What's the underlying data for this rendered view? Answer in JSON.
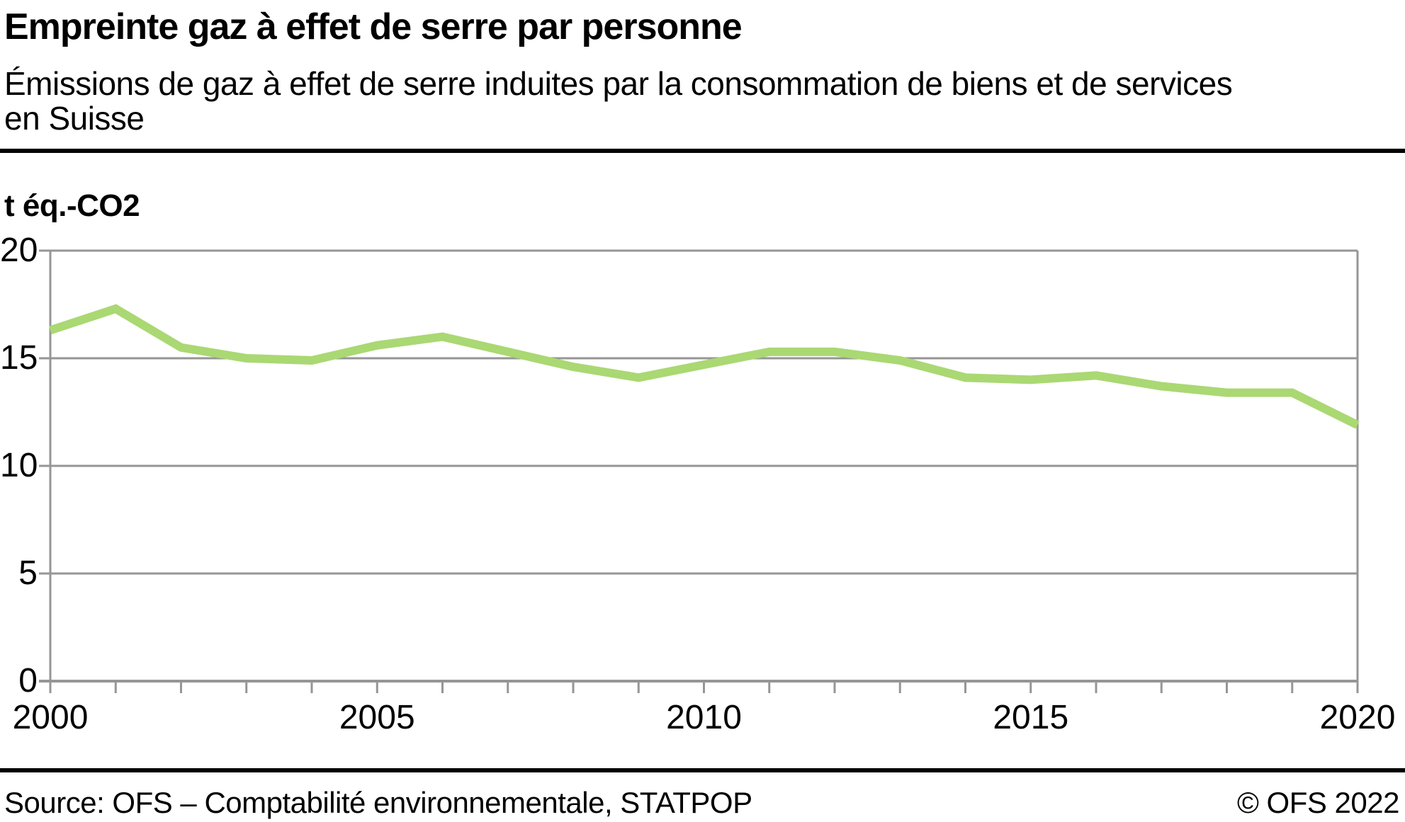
{
  "header": {
    "title": "Empreinte gaz à effet de serre par personne",
    "subtitle_lines": [
      "Émissions de gaz à effet de serre induites par la consommation de biens et de services",
      "en Suisse"
    ]
  },
  "chart": {
    "unit_label": "t éq.-CO2"
  },
  "chart_data": {
    "type": "line",
    "title": "Empreinte gaz à effet de serre par personne",
    "x": [
      2000,
      2001,
      2002,
      2003,
      2004,
      2005,
      2006,
      2007,
      2008,
      2009,
      2010,
      2011,
      2012,
      2013,
      2014,
      2015,
      2016,
      2017,
      2018,
      2019,
      2020
    ],
    "series": [
      {
        "name": "Empreinte gaz à effet de serre par personne (t éq.-CO2)",
        "values": [
          16.3,
          17.3,
          15.5,
          15.0,
          14.9,
          15.6,
          16.0,
          15.3,
          14.6,
          14.1,
          14.7,
          15.3,
          15.3,
          14.9,
          14.1,
          14.0,
          14.2,
          13.7,
          13.4,
          13.4,
          11.9
        ]
      }
    ],
    "xlabel": "",
    "ylabel": "t éq.-CO2",
    "xlim": [
      2000,
      2020
    ],
    "ylim": [
      0,
      20
    ],
    "yticks": [
      0,
      5,
      10,
      15,
      20
    ],
    "xticks": [
      2000,
      2005,
      2010,
      2015,
      2020
    ],
    "grid": true,
    "legend": false,
    "colors": {
      "line": "#aad873",
      "grid": "#969696",
      "axis": "#969696",
      "text": "#000000",
      "rule": "#000000"
    }
  },
  "footer": {
    "source": "Source: OFS – Comptabilité environnementale, STATPOP",
    "copyright": "© OFS 2022"
  }
}
